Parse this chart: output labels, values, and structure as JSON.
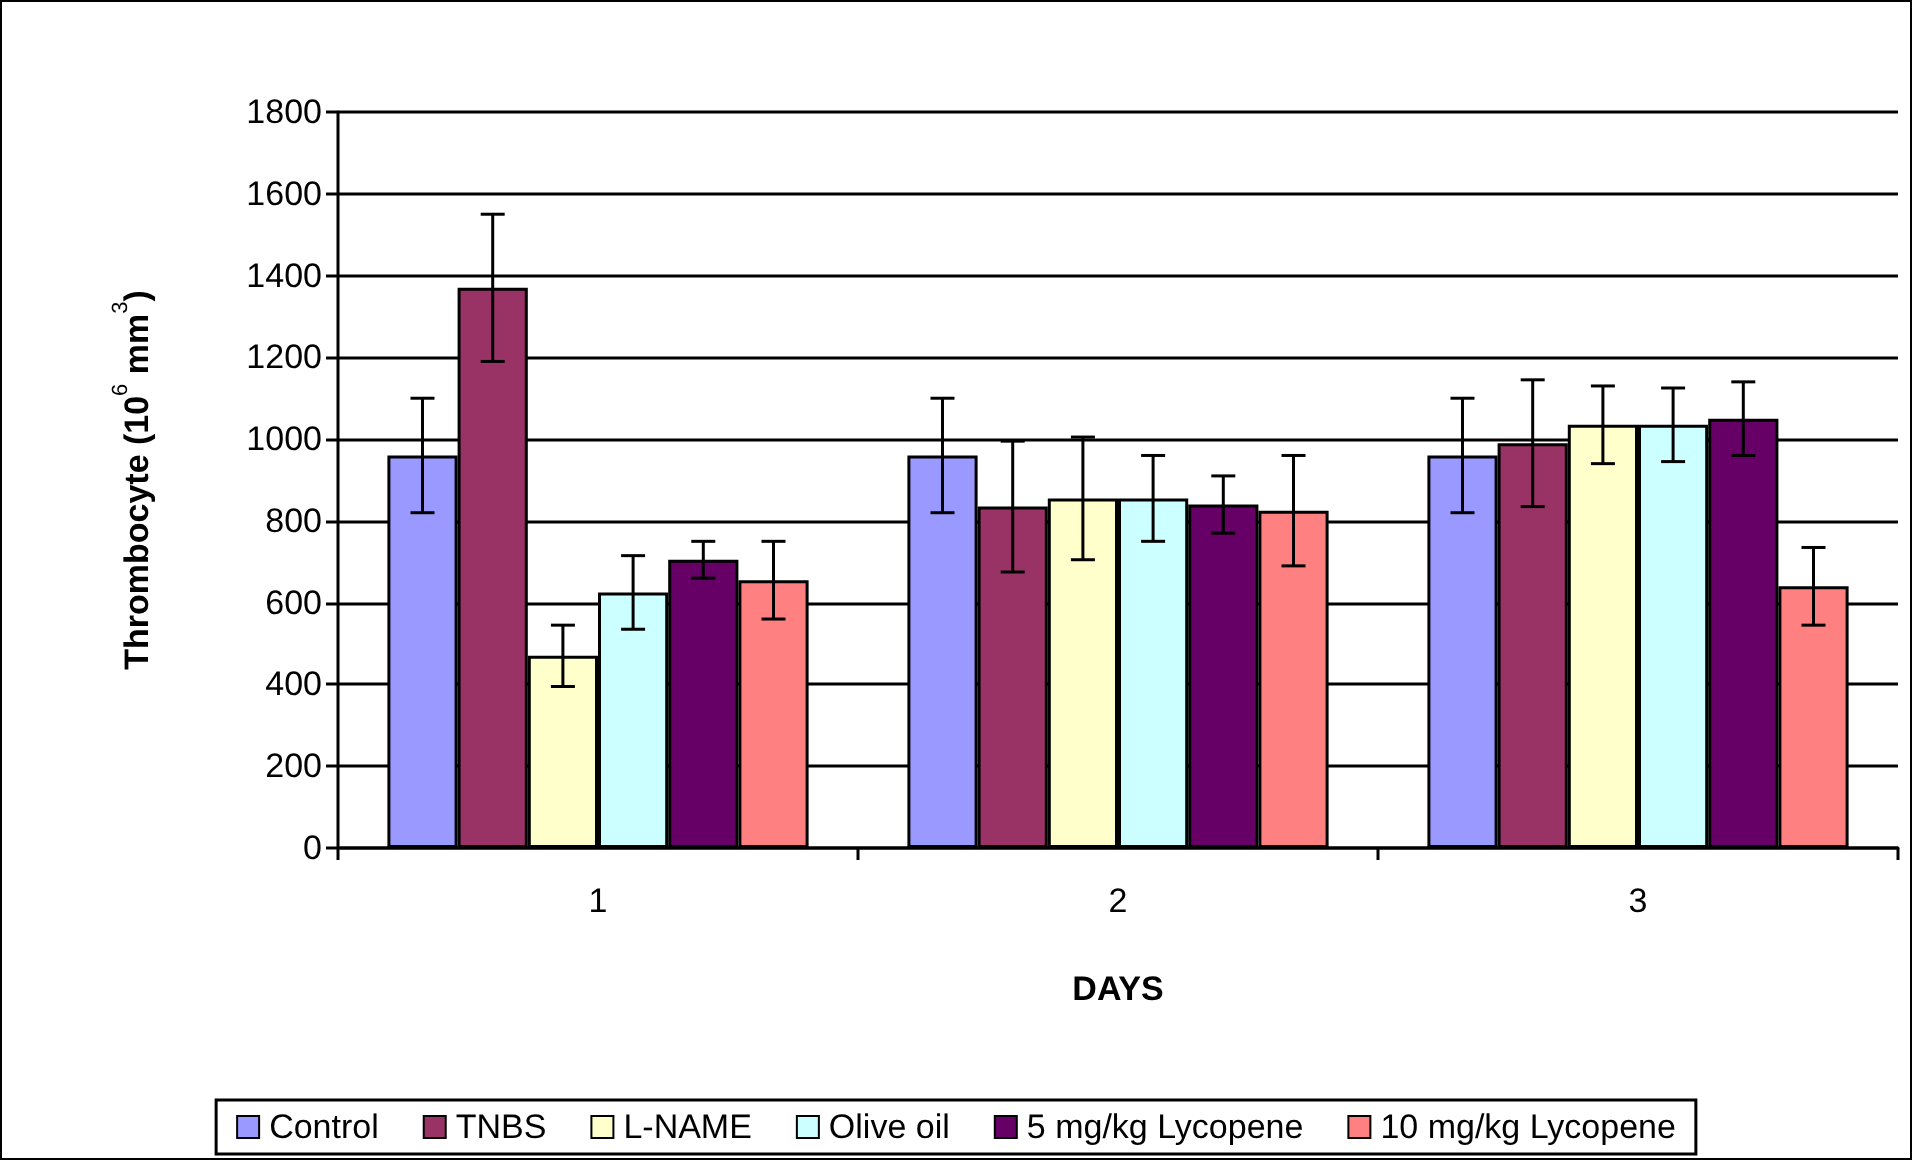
{
  "chart_data": {
    "type": "bar",
    "xlabel": "DAYS",
    "ylabel": "Thrombocyte (10$^{6}$ mm$^{3}$)",
    "categories": [
      "1",
      "2",
      "3"
    ],
    "series": [
      {
        "name": "Control",
        "color": "#9999ff",
        "values": [
          960,
          960,
          960
        ],
        "errors": [
          140,
          140,
          140
        ]
      },
      {
        "name": "TNBS",
        "color": "#993366",
        "values": [
          1370,
          835,
          990
        ],
        "errors": [
          180,
          160,
          155
        ]
      },
      {
        "name": "L-NAME",
        "color": "#ffffcc",
        "values": [
          470,
          855,
          1035
        ],
        "errors": [
          75,
          150,
          95
        ]
      },
      {
        "name": "Olive oil",
        "color": "#ccffff",
        "values": [
          625,
          855,
          1035
        ],
        "errors": [
          90,
          105,
          90
        ]
      },
      {
        "name": "5 mg/kg Lycopene",
        "color": "#660066",
        "values": [
          705,
          840,
          1050
        ],
        "errors": [
          45,
          70,
          90
        ]
      },
      {
        "name": "10 mg/kg Lycopene",
        "color": "#ff8080",
        "values": [
          655,
          825,
          640
        ],
        "errors": [
          95,
          135,
          95
        ]
      }
    ],
    "ylim": [
      0,
      1800
    ],
    "yticks": [
      0,
      200,
      400,
      600,
      800,
      1000,
      1200,
      1400,
      1600,
      1800
    ],
    "grid": "y",
    "legend": "bottom"
  }
}
